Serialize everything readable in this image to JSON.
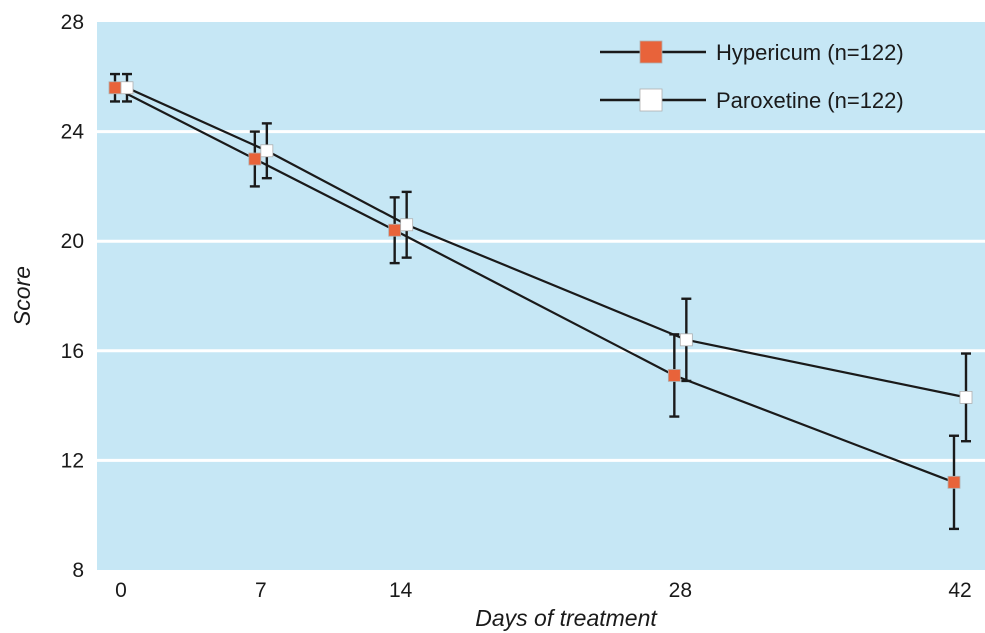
{
  "chart_data": {
    "type": "line",
    "title": "",
    "xlabel": "Days of treatment",
    "ylabel": "Score",
    "x": [
      0,
      7,
      14,
      28,
      42
    ],
    "xticks": [
      "0",
      "7",
      "14",
      "28",
      "42"
    ],
    "yticks": [
      "8",
      "12",
      "16",
      "20",
      "24",
      "28"
    ],
    "xlim": [
      -0.5,
      43.5
    ],
    "ylim": [
      8,
      28
    ],
    "grid": "horizontal",
    "legend_position": "top-right",
    "series": [
      {
        "name": "Hypericum (n=122)",
        "values": [
          25.6,
          23.0,
          20.4,
          15.1,
          11.2
        ],
        "error": [
          0.5,
          1.0,
          1.2,
          1.5,
          1.7
        ],
        "marker_color": "#e8633a"
      },
      {
        "name": "Paroxetine (n=122)",
        "values": [
          25.6,
          23.3,
          20.6,
          16.4,
          14.3
        ],
        "error": [
          0.5,
          1.0,
          1.2,
          1.5,
          1.6
        ],
        "marker_color": "#ffffff"
      }
    ],
    "colors": {
      "plot_background": "#c6e7f5",
      "gridlines": "#ffffff",
      "lines": "#1a1a1a"
    }
  }
}
